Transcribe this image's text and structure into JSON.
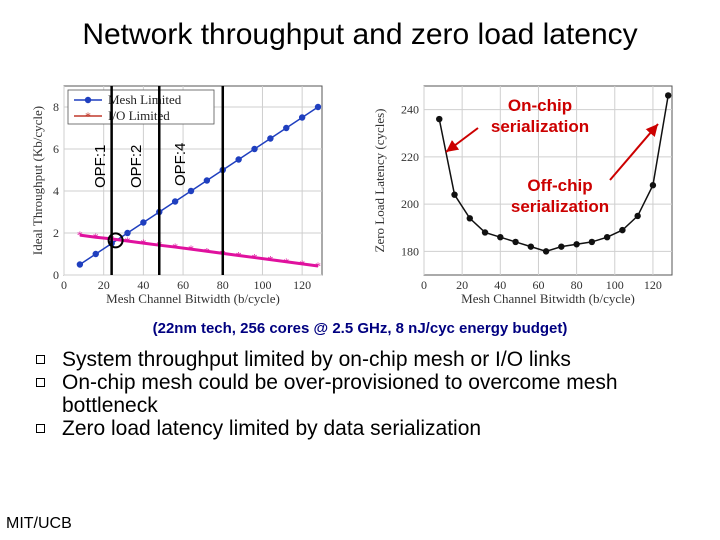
{
  "title": "Network throughput and zero load latency",
  "note": "(22nm tech, 256 cores @ 2.5 GHz, 8 nJ/cyc energy budget)",
  "bullets": [
    "System throughput limited by on-chip mesh or I/O links",
    "On-chip mesh could be over-provisioned to overcome mesh bottleneck",
    "Zero load latency limited by data serialization"
  ],
  "footer": "MIT/UCB",
  "annotations": {
    "onchip": "On-chip serialization",
    "offchip": "Off-chip serialization",
    "opf1": "OPF:1",
    "opf2": "OPF:2",
    "opf4": "OPF:4"
  },
  "colors": {
    "annotation": "#cc0000",
    "note": "#000080",
    "mesh": "#1f3fbf",
    "io": "#e0119e"
  },
  "chart_data": [
    {
      "type": "line",
      "title": "",
      "xlabel": "Mesh Channel Bitwidth (b/cycle)",
      "ylabel": "Ideal Throughput (Kb/cycle)",
      "xlim": [
        0,
        130
      ],
      "ylim": [
        0,
        9
      ],
      "xticks": [
        0,
        20,
        40,
        60,
        80,
        100,
        120
      ],
      "yticks": [
        0,
        2,
        4,
        6,
        8
      ],
      "grid": true,
      "legend": "top-left",
      "series": [
        {
          "name": "Mesh Limited",
          "x": [
            8,
            16,
            24,
            32,
            40,
            48,
            56,
            64,
            72,
            80,
            88,
            96,
            104,
            112,
            120,
            128
          ],
          "y": [
            0.5,
            1.0,
            1.5,
            2.0,
            2.5,
            3.0,
            3.5,
            4.0,
            4.5,
            5.0,
            5.5,
            6.0,
            6.5,
            7.0,
            7.5,
            8.0
          ]
        },
        {
          "name": "I/O Limited",
          "x": [
            8,
            16,
            24,
            32,
            40,
            48,
            56,
            64,
            72,
            80,
            88,
            96,
            104,
            112,
            120,
            128
          ],
          "y": [
            1.9,
            1.8,
            1.72,
            1.62,
            1.52,
            1.42,
            1.33,
            1.23,
            1.13,
            1.03,
            0.93,
            0.83,
            0.73,
            0.63,
            0.53,
            0.43
          ]
        }
      ]
    },
    {
      "type": "line",
      "title": "",
      "xlabel": "Mesh Channel Bitwidth (b/cycle)",
      "ylabel": "Zero Load Latency (cycles)",
      "xlim": [
        0,
        130
      ],
      "ylim": [
        170,
        250
      ],
      "xticks": [
        0,
        20,
        40,
        60,
        80,
        100,
        120
      ],
      "yticks": [
        180,
        200,
        220,
        240
      ],
      "grid": true,
      "series": [
        {
          "name": "",
          "x": [
            8,
            16,
            24,
            32,
            40,
            48,
            56,
            64,
            72,
            80,
            88,
            96,
            104,
            112,
            120,
            128
          ],
          "y": [
            236,
            204,
            194,
            188,
            186,
            184,
            182,
            180,
            182,
            183,
            184,
            186,
            189,
            195,
            208,
            246
          ]
        }
      ]
    }
  ]
}
